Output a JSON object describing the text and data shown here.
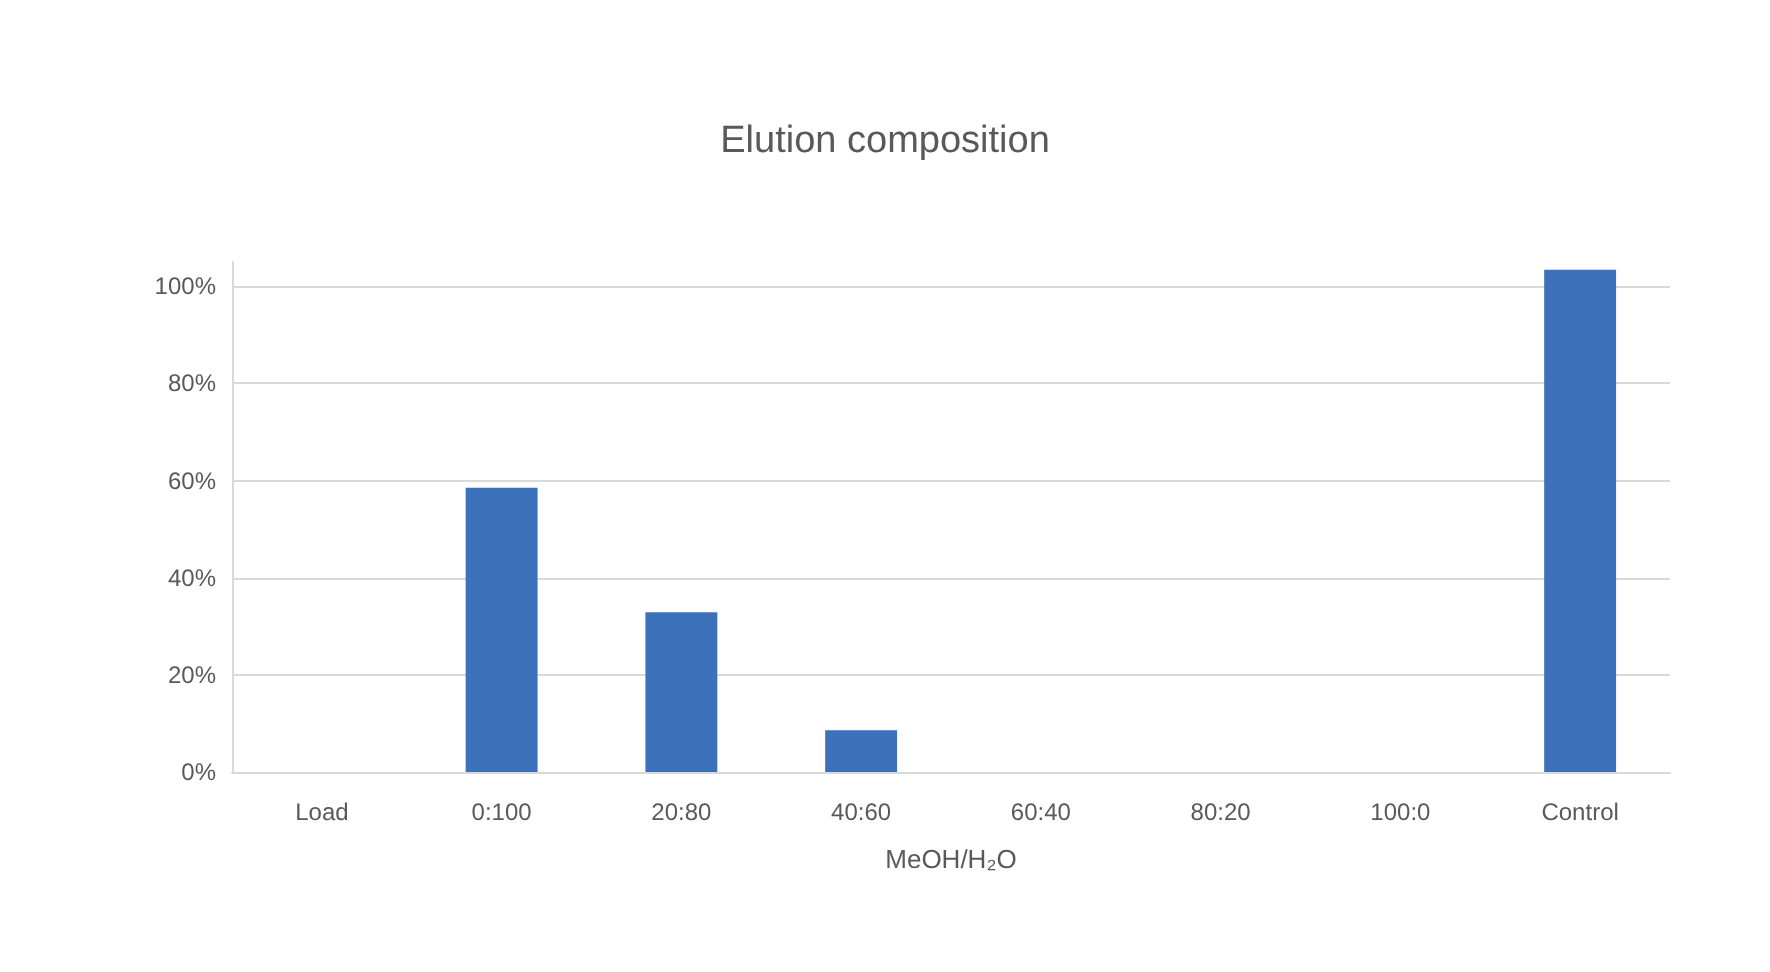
{
  "chart_data": {
    "type": "bar",
    "title": "Elution composition",
    "xlabel": "MeOH/H₂O",
    "categories": [
      "Load",
      "0:100",
      "20:80",
      "40:60",
      "60:40",
      "80:20",
      "100:0",
      "Control"
    ],
    "values": [
      0,
      58.5,
      32.9,
      8.6,
      0,
      0,
      0,
      103.4
    ],
    "color": "#3d72bb",
    "ylim": [
      0,
      105
    ],
    "yticks": [
      {
        "value": 0,
        "label": "0%"
      },
      {
        "value": 20,
        "label": "20%"
      },
      {
        "value": 40,
        "label": "40%"
      },
      {
        "value": 60,
        "label": "60%"
      },
      {
        "value": 80,
        "label": "80%"
      },
      {
        "value": 100,
        "label": "100%"
      }
    ],
    "grid": "y"
  }
}
